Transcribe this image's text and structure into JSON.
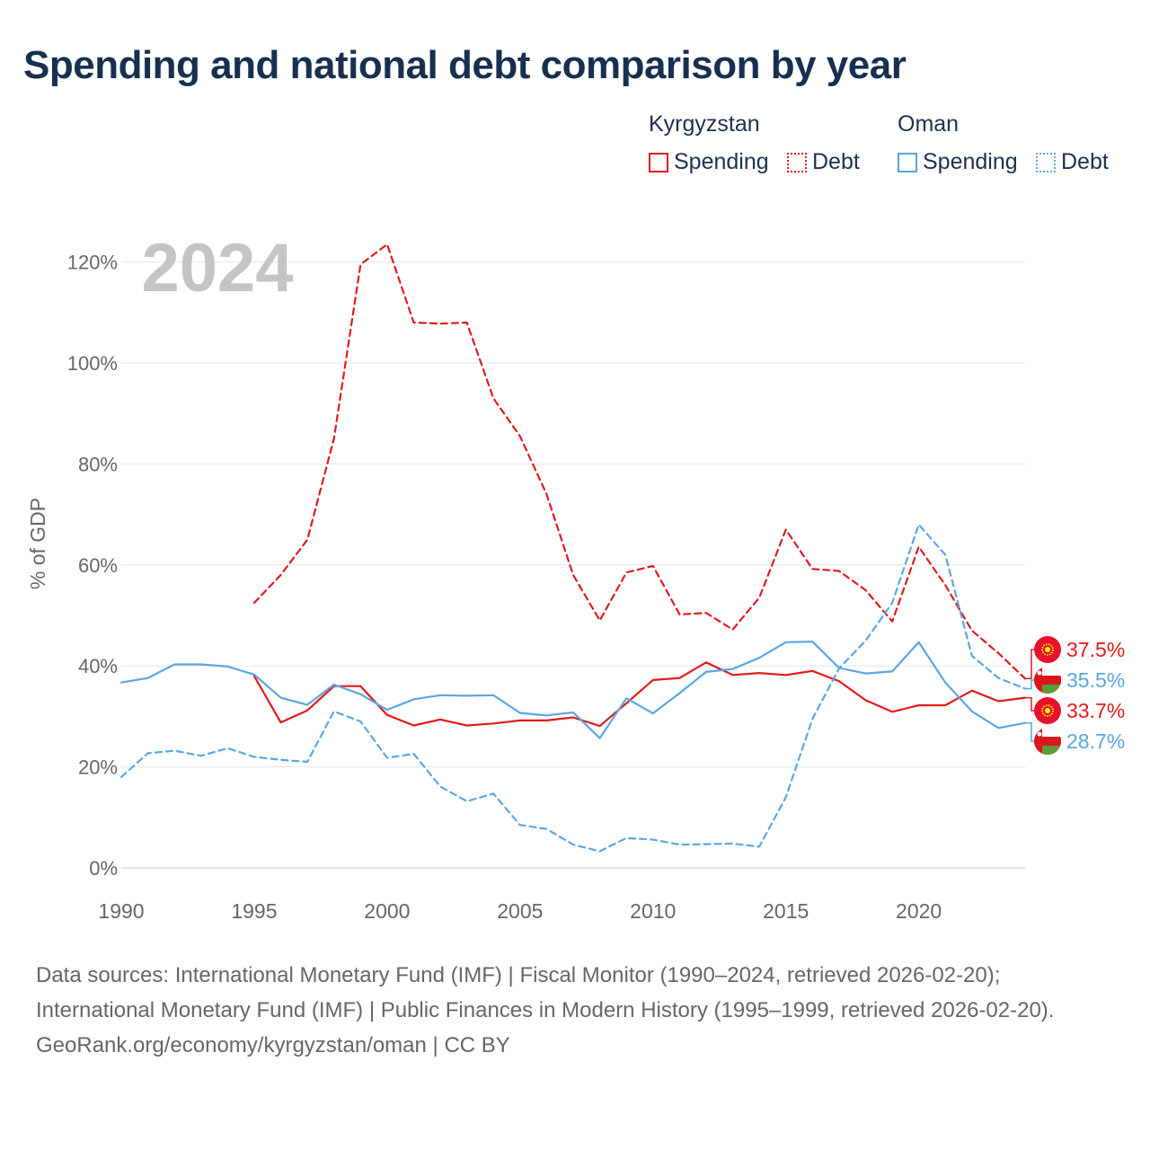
{
  "title": "Spending and national debt comparison by year",
  "legend": {
    "groups": [
      {
        "country": "Kyrgyzstan",
        "spending_label": "Spending",
        "debt_label": "Debt"
      },
      {
        "country": "Oman",
        "spending_label": "Spending",
        "debt_label": "Debt"
      }
    ]
  },
  "year_watermark": "2024",
  "footer": {
    "sources": "Data sources: International Monetary Fund (IMF) | Fiscal Monitor (1990–2024, retrieved 2026-02-20); International Monetary Fund (IMF) | Public Finances in Modern History (1995–1999, retrieved 2026-02-20).",
    "credit": "GeoRank.org/economy/kyrgyzstan/oman | CC BY"
  },
  "colors": {
    "kyrgyzstan": "#e31a1c",
    "oman": "#5aa6e3",
    "grid": "#e6e6e6",
    "axis_text": "#666666",
    "watermark": "#c4c4c4"
  },
  "icons": {
    "kyrgyzstan": "kyrgyzstan-flag-icon",
    "oman": "oman-flag-icon"
  },
  "chart_data": {
    "type": "line",
    "title": "Spending and national debt comparison by year",
    "xlabel": "",
    "ylabel": "% of GDP",
    "xlim": [
      1990,
      2024
    ],
    "ylim": [
      0,
      130
    ],
    "x_ticks": [
      1990,
      1995,
      2000,
      2005,
      2010,
      2015,
      2020
    ],
    "y_ticks": [
      0,
      20,
      40,
      60,
      80,
      100,
      120
    ],
    "y_tick_labels": [
      "0%",
      "20%",
      "40%",
      "60%",
      "80%",
      "100%",
      "120%"
    ],
    "grid": true,
    "legend_position": "top-right",
    "series": [
      {
        "name": "Kyrgyzstan Debt",
        "country": "kyrgyzstan",
        "style": "dashed",
        "x": [
          1995,
          1996,
          1997,
          1998,
          1999,
          2000,
          2001,
          2002,
          2003,
          2004,
          2005,
          2006,
          2007,
          2008,
          2009,
          2010,
          2011,
          2012,
          2013,
          2014,
          2015,
          2016,
          2017,
          2018,
          2019,
          2020,
          2021,
          2022,
          2023,
          2024
        ],
        "values": [
          52.5,
          58,
          65,
          85,
          119.5,
          123.5,
          108,
          107.8,
          108,
          93,
          85.5,
          74,
          58,
          49,
          58.5,
          59.8,
          50.2,
          50.5,
          47.2,
          53.5,
          67,
          59.2,
          58.8,
          55,
          48.8,
          63.6,
          56,
          47,
          42.5,
          37.5
        ],
        "end_label": "37.5%"
      },
      {
        "name": "Kyrgyzstan Spending",
        "country": "kyrgyzstan",
        "style": "solid",
        "x": [
          1995,
          1996,
          1997,
          1998,
          1999,
          2000,
          2001,
          2002,
          2003,
          2004,
          2005,
          2006,
          2007,
          2008,
          2009,
          2010,
          2011,
          2012,
          2013,
          2014,
          2015,
          2016,
          2017,
          2018,
          2019,
          2020,
          2021,
          2022,
          2023,
          2024
        ],
        "values": [
          38,
          28.8,
          31.2,
          36,
          36,
          30.3,
          28.2,
          29.4,
          28.2,
          28.6,
          29.2,
          29.2,
          29.8,
          28.1,
          32.6,
          37.2,
          37.6,
          40.7,
          38.2,
          38.6,
          38.2,
          39,
          37,
          33.2,
          30.9,
          32.2,
          32.2,
          35.1,
          33,
          33.7
        ],
        "end_label": "33.7%"
      },
      {
        "name": "Oman Debt",
        "country": "oman",
        "style": "dashed",
        "x": [
          1990,
          1991,
          1992,
          1993,
          1994,
          1995,
          1996,
          1997,
          1998,
          1999,
          2000,
          2001,
          2002,
          2003,
          2004,
          2005,
          2006,
          2007,
          2008,
          2009,
          2010,
          2011,
          2012,
          2013,
          2014,
          2015,
          2016,
          2017,
          2018,
          2019,
          2020,
          2021,
          2022,
          2023,
          2024
        ],
        "values": [
          18,
          22.7,
          23.2,
          22.2,
          23.7,
          22,
          21.4,
          21,
          31,
          29,
          21.8,
          22.6,
          16.1,
          13.2,
          14.7,
          8.5,
          7.7,
          4.6,
          3.3,
          5.9,
          5.6,
          4.6,
          4.7,
          4.8,
          4.2,
          14,
          29.5,
          39.5,
          45,
          52.5,
          68,
          62,
          42,
          37.6,
          35.5
        ],
        "end_label": "35.5%"
      },
      {
        "name": "Oman Spending",
        "country": "oman",
        "style": "solid",
        "x": [
          1990,
          1991,
          1992,
          1993,
          1994,
          1995,
          1996,
          1997,
          1998,
          1999,
          2000,
          2001,
          2002,
          2003,
          2004,
          2005,
          2006,
          2007,
          2008,
          2009,
          2010,
          2011,
          2012,
          2013,
          2014,
          2015,
          2016,
          2017,
          2018,
          2019,
          2020,
          2021,
          2022,
          2023,
          2024
        ],
        "values": [
          36.7,
          37.6,
          40.3,
          40.3,
          39.9,
          38.3,
          33.7,
          32.3,
          36.3,
          34.4,
          31.3,
          33.4,
          34.2,
          34.1,
          34.2,
          30.7,
          30.2,
          30.8,
          25.7,
          33.6,
          30.6,
          34.6,
          38.8,
          39.4,
          41.6,
          44.7,
          44.8,
          39.6,
          38.5,
          38.9,
          44.7,
          36.7,
          31,
          27.7,
          28.7
        ],
        "end_label": "28.7%"
      }
    ]
  }
}
